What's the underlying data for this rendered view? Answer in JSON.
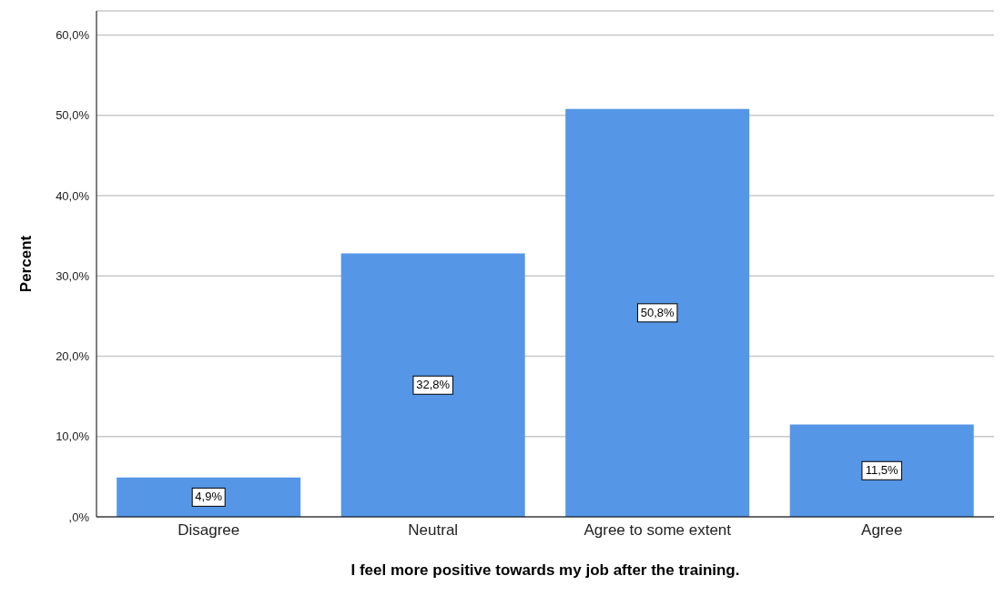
{
  "chart_data": {
    "type": "bar",
    "xlabel": "I feel more positive towards my job after the training.",
    "ylabel": "Percent",
    "categories": [
      "Disagree",
      "Neutral",
      "Agree to some extent",
      "Agree"
    ],
    "values": [
      4.9,
      32.8,
      50.8,
      11.5
    ],
    "value_labels": [
      "4,9%",
      "32,8%",
      "50,8%",
      "11,5%"
    ],
    "color": "#5596e6",
    "ylim": [
      0,
      63
    ],
    "yticks": [
      {
        "value": 0,
        "label": ",0%"
      },
      {
        "value": 10,
        "label": "10,0%"
      },
      {
        "value": 20,
        "label": "20,0%"
      },
      {
        "value": 30,
        "label": "30,0%"
      },
      {
        "value": 40,
        "label": "40,0%"
      },
      {
        "value": 50,
        "label": "50,0%"
      },
      {
        "value": 60,
        "label": "60,0%"
      }
    ],
    "grid": "y"
  }
}
